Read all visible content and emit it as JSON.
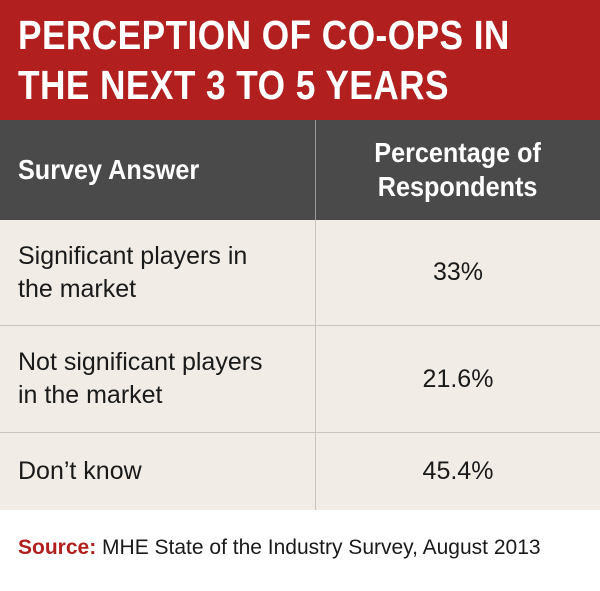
{
  "title": {
    "lines": [
      "PERCEPTION OF CO-OPS IN",
      "THE NEXT 3 TO 5 YEARS"
    ]
  },
  "table": {
    "headers": {
      "answer": "Survey Answer",
      "percentage_line1": "Percentage of",
      "percentage_line2": "Respondents"
    },
    "rows": [
      {
        "answer_line1": "Significant players in",
        "answer_line2": "the market",
        "percentage": "33%"
      },
      {
        "answer_line1": "Not significant players",
        "answer_line2": "in the market",
        "percentage": "21.6%"
      },
      {
        "answer_line1": "Don’t know",
        "answer_line2": "",
        "percentage": "45.4%"
      }
    ]
  },
  "source": {
    "label": "Source:",
    "text": "MHE State of the Industry Survey, August 2013"
  },
  "colors": {
    "title_band": "#b21f1f",
    "header_row": "#4a4a4a",
    "body_rows": "#f1ece6",
    "source_label": "#b21f1f"
  },
  "chart_data": {
    "type": "table",
    "title": "PERCEPTION OF CO-OPS IN THE NEXT 3 TO 5 YEARS",
    "columns": [
      "Survey Answer",
      "Percentage of Respondents"
    ],
    "rows": [
      [
        "Significant players in the market",
        "33%"
      ],
      [
        "Not significant players in the market",
        "21.6%"
      ],
      [
        "Don’t know",
        "45.4%"
      ]
    ],
    "categories": [
      "Significant players in the market",
      "Not significant players in the market",
      "Don’t know"
    ],
    "values": [
      33,
      21.6,
      45.4
    ],
    "unit": "%"
  }
}
